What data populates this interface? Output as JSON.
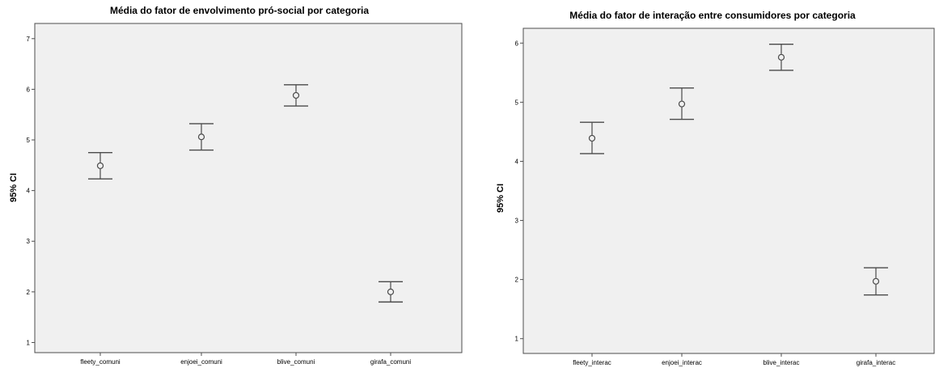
{
  "chart_data": [
    {
      "type": "errorbar",
      "title": "Média do fator de envolvimento pró-social por categoria",
      "xlabel": "",
      "ylabel": "95% CI",
      "ylim": [
        0.8,
        7.3
      ],
      "yticks": [
        1,
        2,
        3,
        4,
        5,
        6,
        7
      ],
      "categories": [
        "fleety_comuni",
        "enjoei_comuni",
        "blive_comuni",
        "girafa_comuni"
      ],
      "means": [
        4.49,
        5.06,
        5.88,
        2.0
      ],
      "lower": [
        4.23,
        4.8,
        5.67,
        1.8
      ],
      "upper": [
        4.75,
        5.32,
        6.09,
        2.2
      ],
      "grid": false,
      "colors": {
        "plot_bg": "#f0f0f0",
        "marks": "#4a4a4a",
        "axis": "#4d4d4d"
      }
    },
    {
      "type": "errorbar",
      "title": "Média do fator de interação entre consumidores por categoria",
      "xlabel": "",
      "ylabel": "95% CI",
      "ylim": [
        0.75,
        6.25
      ],
      "yticks": [
        1,
        2,
        3,
        4,
        5,
        6
      ],
      "categories": [
        "fleety_interac",
        "enjoei_interac",
        "blive_interac",
        "girafa_interac"
      ],
      "means": [
        4.39,
        4.97,
        5.76,
        1.97
      ],
      "lower": [
        4.13,
        4.71,
        5.54,
        1.74
      ],
      "upper": [
        4.66,
        5.24,
        5.98,
        2.2
      ],
      "grid": false,
      "colors": {
        "plot_bg": "#f0f0f0",
        "marks": "#4a4a4a",
        "axis": "#4d4d4d"
      }
    }
  ]
}
